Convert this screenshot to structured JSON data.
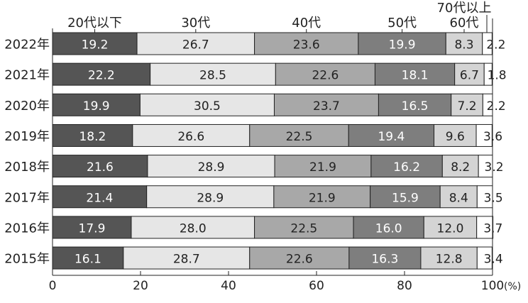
{
  "chart_data": {
    "type": "bar",
    "orientation": "horizontal",
    "stacked": true,
    "title": "",
    "categories": [
      "2022年",
      "2021年",
      "2020年",
      "2019年",
      "2018年",
      "2017年",
      "2016年",
      "2015年"
    ],
    "series": [
      {
        "name": "20代以下",
        "color": "#555555",
        "label_color": "#ffffff",
        "values": [
          19.2,
          22.2,
          19.9,
          18.2,
          21.6,
          21.4,
          17.9,
          16.1
        ]
      },
      {
        "name": "30代",
        "color": "#e6e6e6",
        "label_color": "#222222",
        "values": [
          26.7,
          28.5,
          30.5,
          26.6,
          28.9,
          28.9,
          28.0,
          28.7
        ]
      },
      {
        "name": "40代",
        "color": "#a8a8a8",
        "label_color": "#222222",
        "values": [
          23.6,
          22.6,
          23.7,
          22.5,
          21.9,
          21.9,
          22.5,
          22.6
        ]
      },
      {
        "name": "50代",
        "color": "#7e7e7e",
        "label_color": "#ffffff",
        "values": [
          19.9,
          18.1,
          16.5,
          19.4,
          16.2,
          15.9,
          16.0,
          16.3
        ]
      },
      {
        "name": "60代",
        "color": "#d4d4d4",
        "label_color": "#222222",
        "values": [
          8.3,
          6.7,
          7.2,
          9.6,
          8.2,
          8.4,
          12.0,
          12.8
        ]
      },
      {
        "name": "70代以上",
        "color": "#ffffff",
        "label_color": "#222222",
        "values": [
          2.2,
          1.8,
          2.2,
          3.6,
          3.2,
          3.5,
          3.7,
          3.4
        ]
      }
    ],
    "value_labels": [
      [
        "19.2",
        "26.7",
        "23.6",
        "19.9",
        "8.3",
        "2.2"
      ],
      [
        "22.2",
        "28.5",
        "22.6",
        "18.1",
        "6.7",
        "1.8"
      ],
      [
        "19.9",
        "30.5",
        "23.7",
        "16.5",
        "7.2",
        "2.2"
      ],
      [
        "18.2",
        "26.6",
        "22.5",
        "19.4",
        "9.6",
        "3.6"
      ],
      [
        "21.6",
        "28.9",
        "21.9",
        "16.2",
        "8.2",
        "3.2"
      ],
      [
        "21.4",
        "28.9",
        "21.9",
        "15.9",
        "8.4",
        "3.5"
      ],
      [
        "17.9",
        "28.0",
        "22.5",
        "16.0",
        "12.0",
        "3.7"
      ],
      [
        "16.1",
        "28.7",
        "22.6",
        "16.3",
        "12.8",
        "3.4"
      ]
    ],
    "xlim": [
      0,
      100
    ],
    "x_ticks": [
      0,
      20,
      40,
      60,
      80,
      100
    ],
    "x_tick_labels": [
      "0",
      "20",
      "40",
      "60",
      "80",
      "100"
    ],
    "x_unit": "(%)",
    "legend_placement": "top, above each segment of the first bar",
    "grid": false
  }
}
